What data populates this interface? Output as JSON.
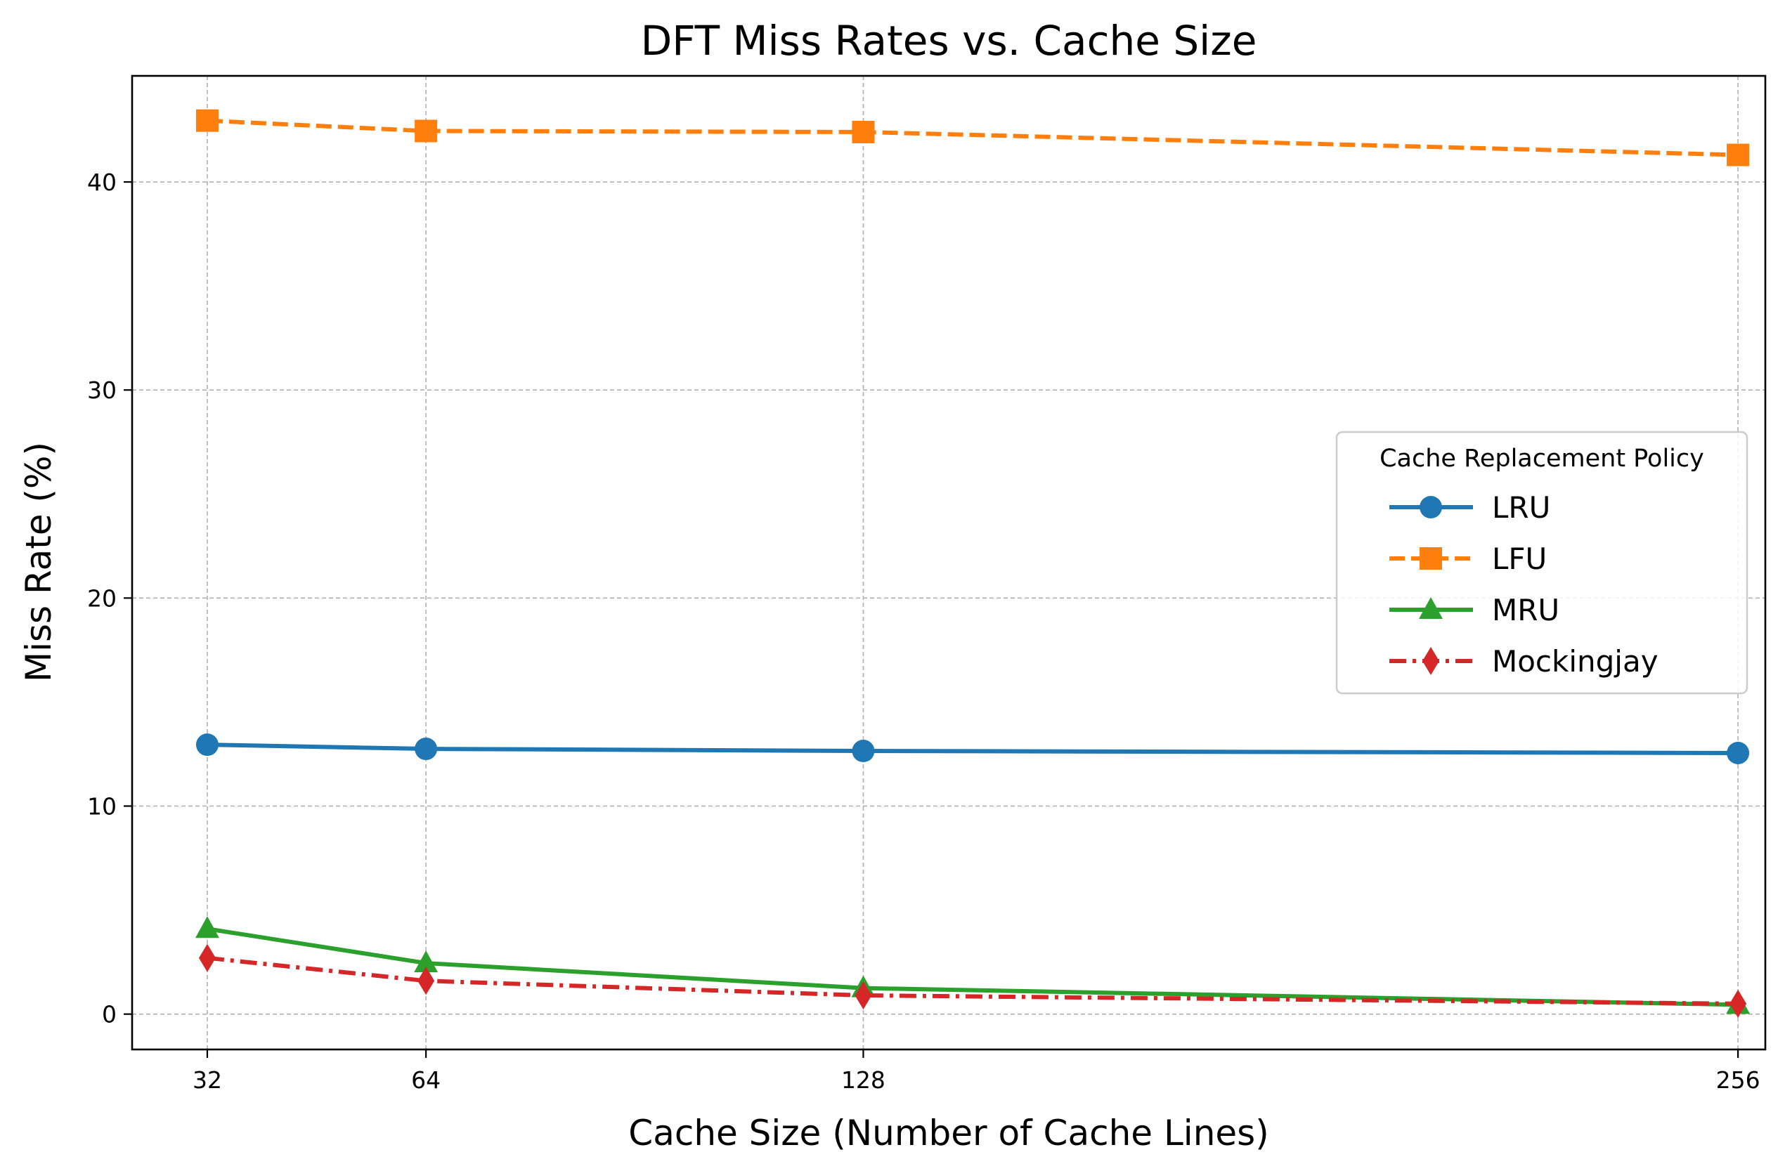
{
  "chart_data": {
    "type": "line",
    "title": "DFT Miss Rates vs. Cache Size",
    "xlabel": "Cache Size (Number of Cache Lines)",
    "ylabel": "Miss Rate (%)",
    "x": [
      32,
      64,
      128,
      256
    ],
    "x_tick_labels": [
      "32",
      "64",
      "128",
      "256"
    ],
    "xlim": [
      21,
      260
    ],
    "ylim": [
      -1.7,
      45.1
    ],
    "y_ticks": [
      0,
      10,
      20,
      30,
      40
    ],
    "y_tick_labels": [
      "0",
      "10",
      "20",
      "30",
      "40"
    ],
    "grid": true,
    "legend": {
      "title": "Cache Replacement Policy",
      "placement": "center-right"
    },
    "series": [
      {
        "name": "LRU",
        "values": [
          12.95,
          12.75,
          12.65,
          12.55
        ],
        "color": "#1f77b4",
        "marker": "circle",
        "linestyle": "solid"
      },
      {
        "name": "LFU",
        "values": [
          42.95,
          42.45,
          42.4,
          41.3
        ],
        "color": "#ff7f0e",
        "marker": "square",
        "linestyle": "dashed"
      },
      {
        "name": "MRU",
        "values": [
          4.1,
          2.45,
          1.25,
          0.45
        ],
        "color": "#2ca02c",
        "marker": "triangle",
        "linestyle": "solid"
      },
      {
        "name": "Mockingjay",
        "values": [
          2.7,
          1.6,
          0.9,
          0.5
        ],
        "color": "#d62728",
        "marker": "diamond",
        "linestyle": "dashdot"
      }
    ]
  }
}
